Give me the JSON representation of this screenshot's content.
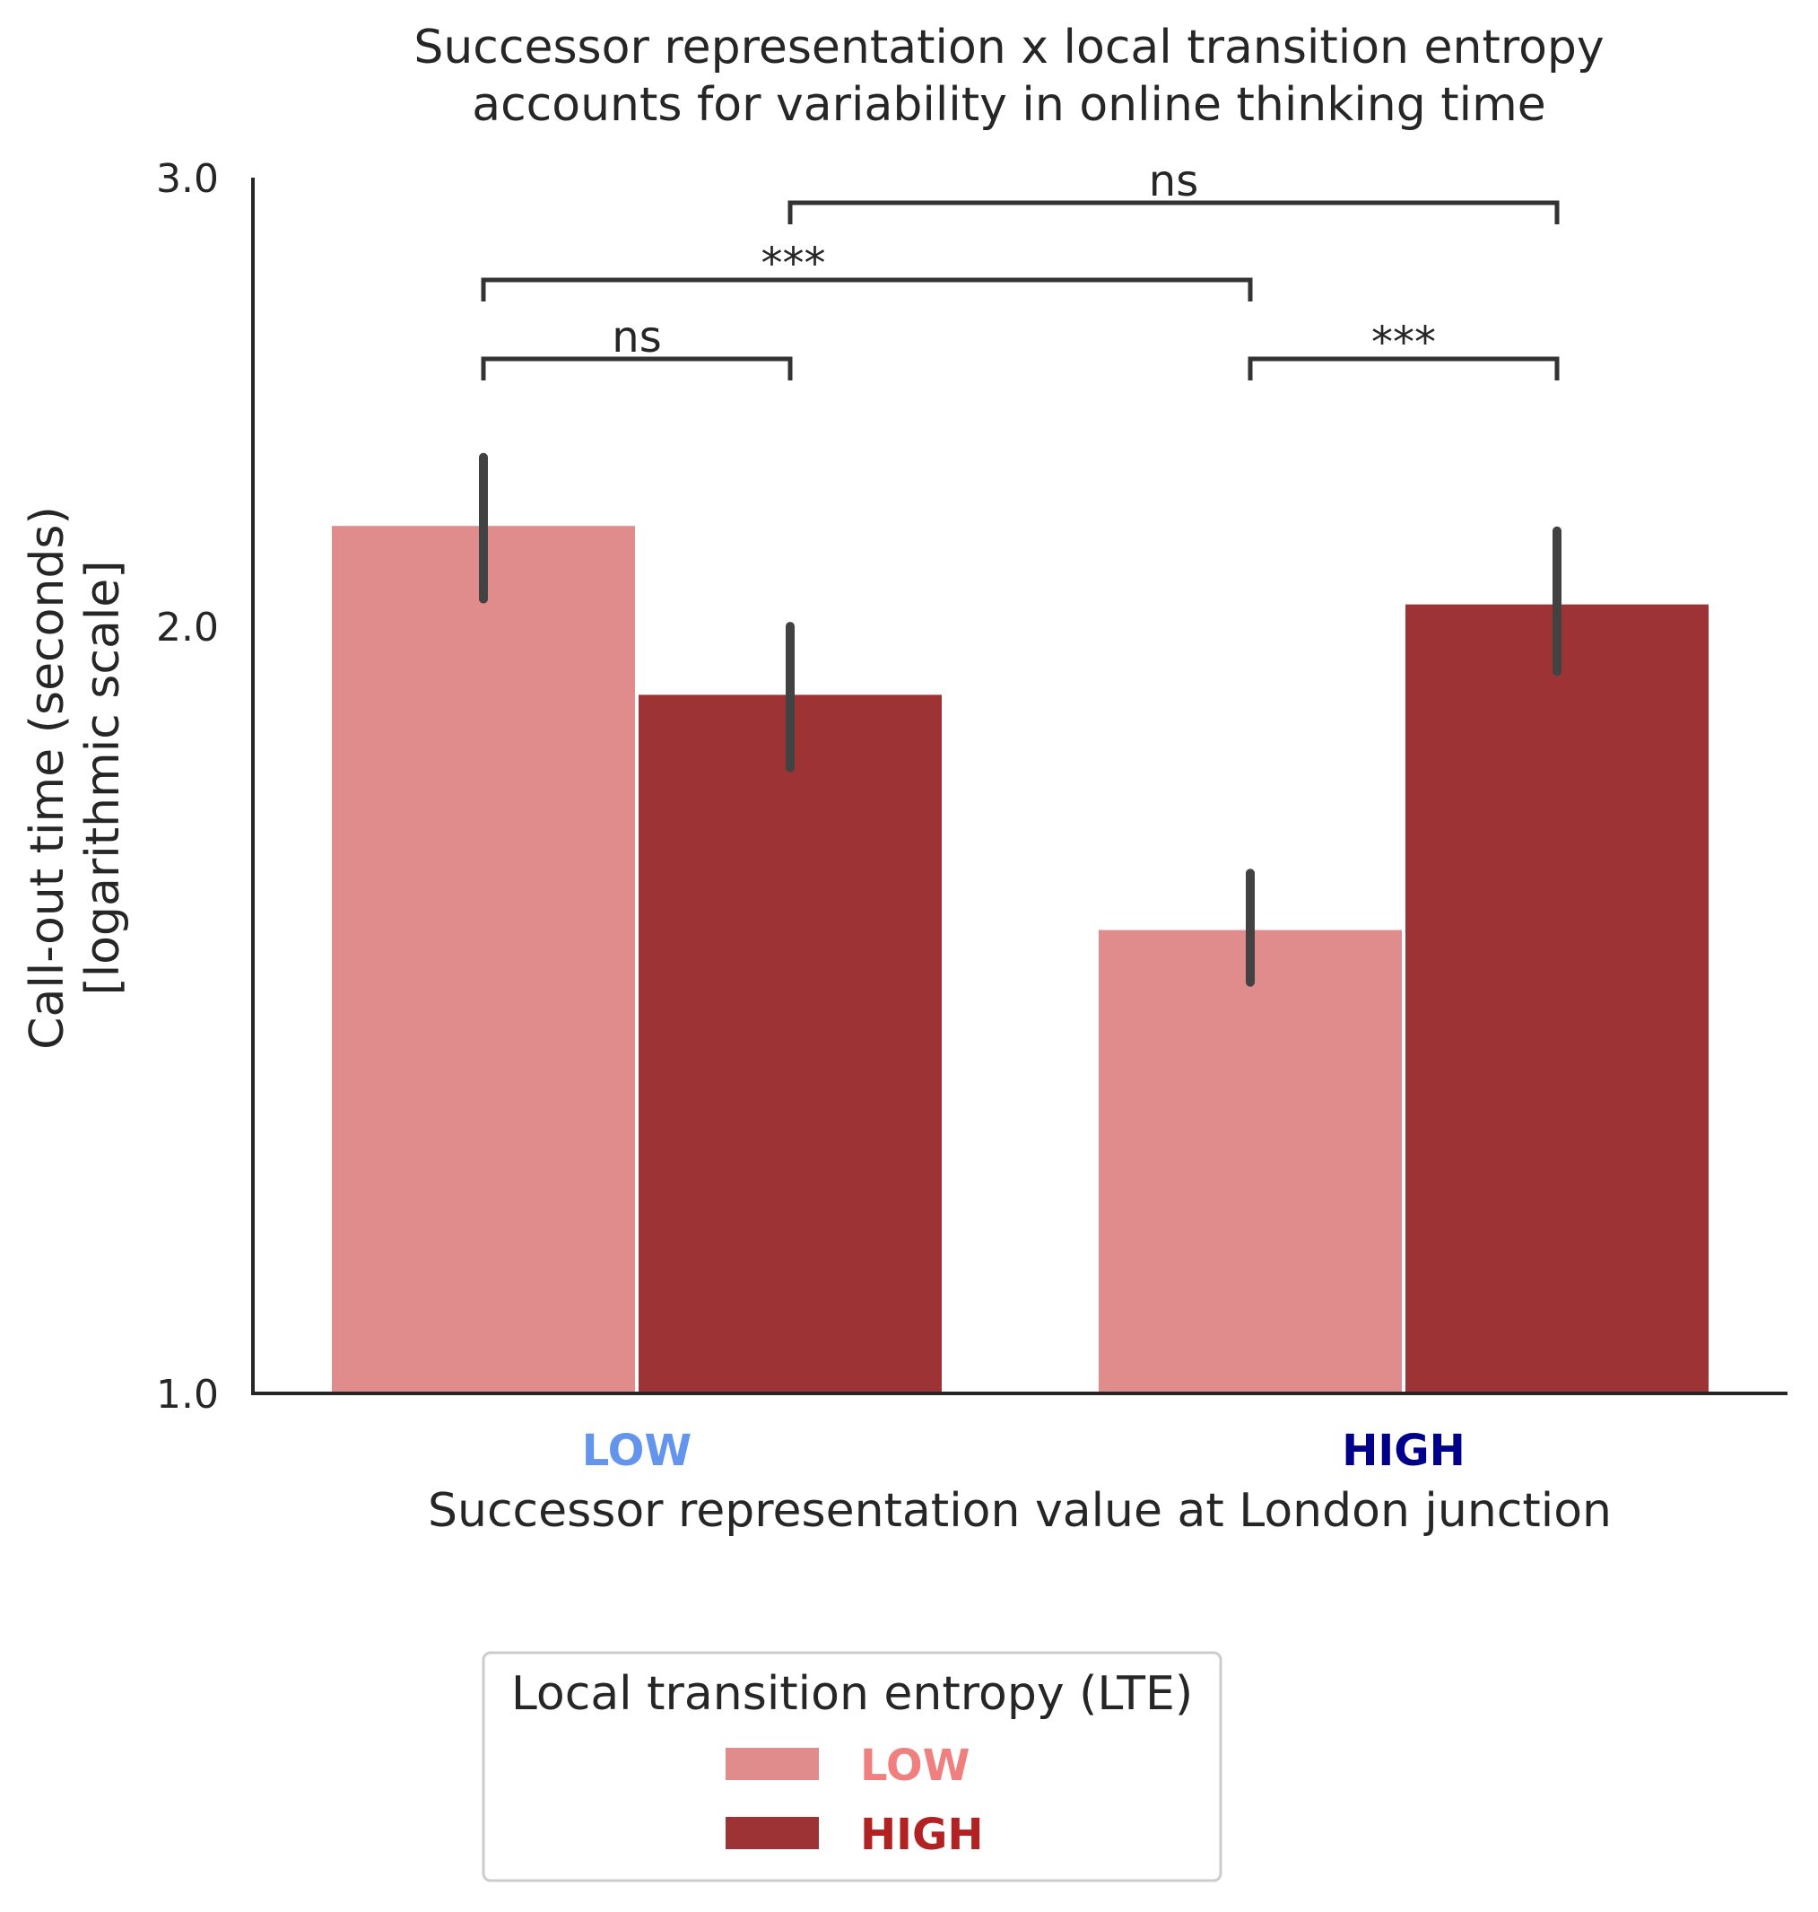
{
  "chart_data": {
    "type": "bar",
    "title": [
      "Successor representation x local transition entropy",
      "accounts for variability in online thinking time"
    ],
    "xlabel": "Successor representation value at London junction",
    "ylabel": [
      "Call-out time (seconds)",
      "[logarithmic scale]"
    ],
    "yscale": "log",
    "ylim": [
      1.0,
      3.0
    ],
    "yticks": [
      1.0,
      2.0,
      3.0
    ],
    "ytick_labels": [
      "1.0",
      "2.0",
      "3.0"
    ],
    "categories": [
      "LOW",
      "HIGH"
    ],
    "category_colors": [
      "#6495ED",
      "#00008B"
    ],
    "series": [
      {
        "name": "LOW",
        "color": "#E08C8C",
        "label_color": "#F08080",
        "values": [
          2.19,
          1.52
        ],
        "err_low": [
          2.05,
          1.45
        ],
        "err_high": [
          2.33,
          1.6
        ]
      },
      {
        "name": "HIGH",
        "color": "#9E3335",
        "label_color": "#B22222",
        "values": [
          1.88,
          2.04
        ],
        "err_low": [
          1.76,
          1.92
        ],
        "err_high": [
          2.0,
          2.18
        ]
      }
    ],
    "significance": [
      {
        "label": "ns",
        "from": [
          0,
          0
        ],
        "to": [
          0,
          1
        ]
      },
      {
        "label": "***",
        "from": [
          1,
          0
        ],
        "to": [
          1,
          1
        ]
      },
      {
        "label": "***",
        "from": [
          0,
          0
        ],
        "to": [
          1,
          0
        ]
      },
      {
        "label": "ns",
        "from": [
          0,
          1
        ],
        "to": [
          1,
          1
        ]
      }
    ],
    "legend": {
      "title": "Local transition entropy (LTE)",
      "position": "bottom-center"
    },
    "grid": false
  }
}
